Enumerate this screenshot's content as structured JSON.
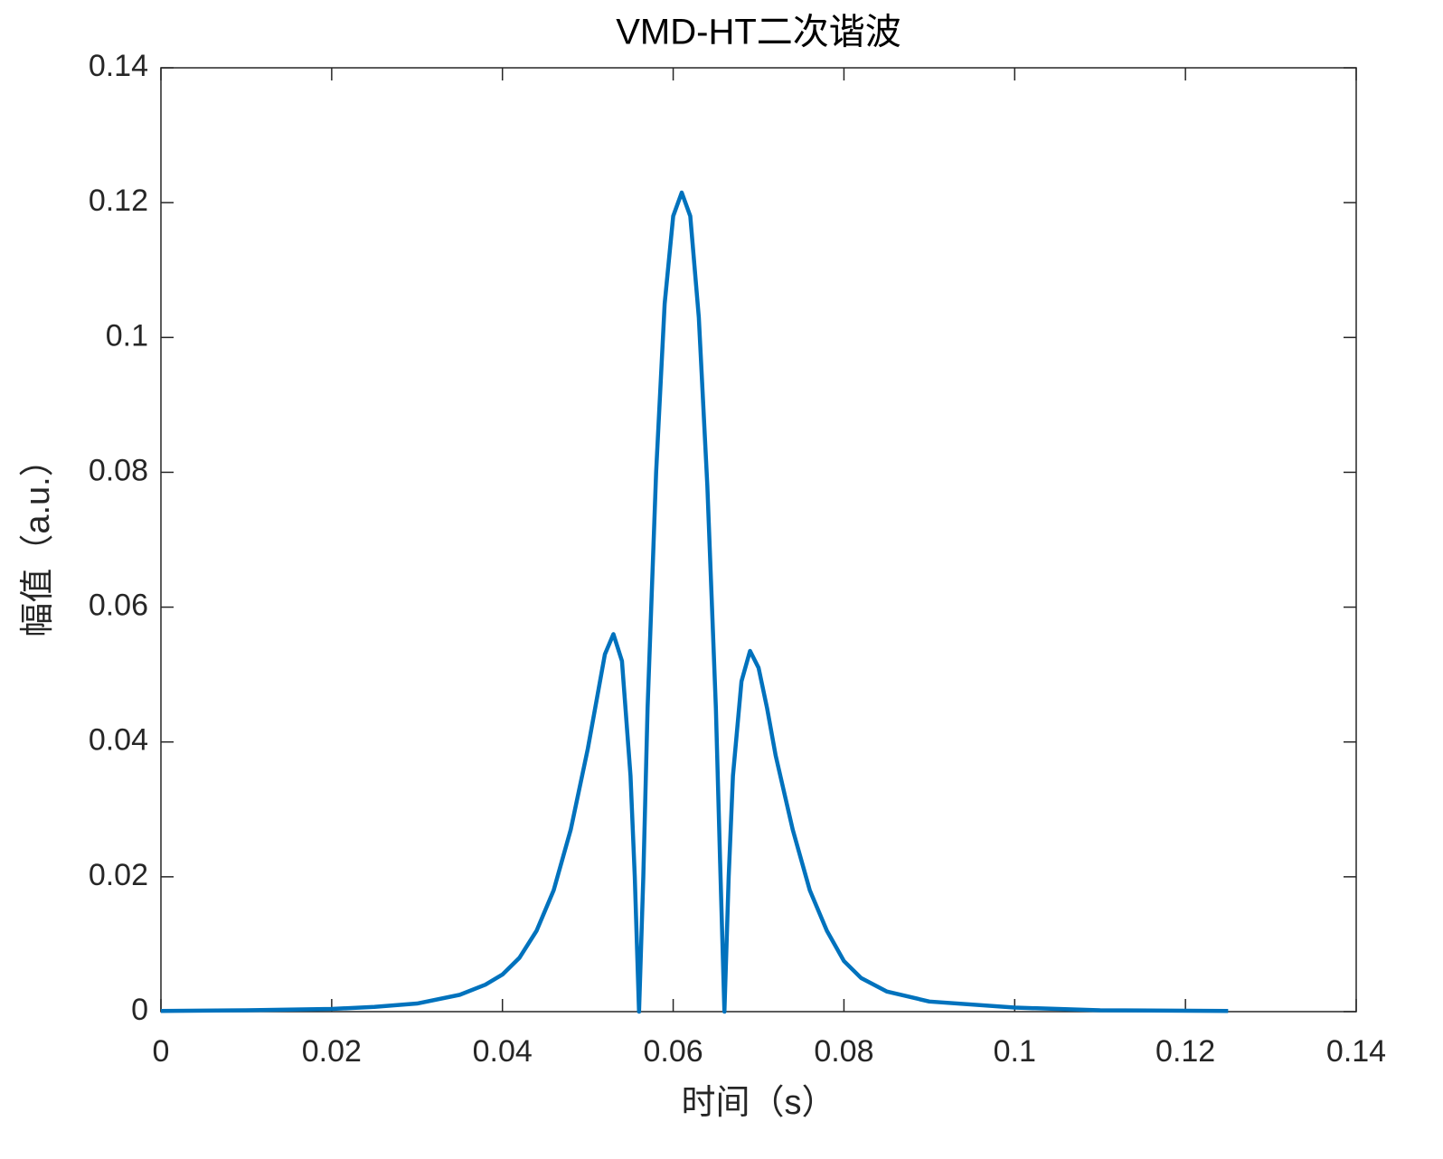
{
  "chart_data": {
    "type": "line",
    "title": "VMD-HT二次谐波",
    "x_label": "时间（s）",
    "y_label": "幅值（a.u.）",
    "x": [
      0,
      0.01,
      0.02,
      0.025,
      0.03,
      0.035,
      0.038,
      0.04,
      0.042,
      0.044,
      0.046,
      0.048,
      0.05,
      0.051,
      0.052,
      0.053,
      0.054,
      0.055,
      0.0555,
      0.056,
      0.0565,
      0.057,
      0.058,
      0.059,
      0.06,
      0.061,
      0.062,
      0.063,
      0.064,
      0.065,
      0.0655,
      0.066,
      0.0665,
      0.067,
      0.068,
      0.069,
      0.07,
      0.071,
      0.072,
      0.074,
      0.076,
      0.078,
      0.08,
      0.082,
      0.085,
      0.09,
      0.1,
      0.11,
      0.125
    ],
    "values": [
      0.0001,
      0.0002,
      0.0004,
      0.0007,
      0.0012,
      0.0025,
      0.004,
      0.0055,
      0.008,
      0.012,
      0.018,
      0.027,
      0.039,
      0.046,
      0.053,
      0.056,
      0.052,
      0.035,
      0.02,
      0,
      0.02,
      0.045,
      0.08,
      0.105,
      0.118,
      0.1215,
      0.118,
      0.103,
      0.078,
      0.045,
      0.022,
      0,
      0.02,
      0.035,
      0.049,
      0.0535,
      0.051,
      0.045,
      0.038,
      0.027,
      0.018,
      0.012,
      0.0075,
      0.005,
      0.003,
      0.0015,
      0.0006,
      0.0002,
      0.0001
    ],
    "color": "#0072BD",
    "xlim": [
      0,
      0.14
    ],
    "xticks": [
      0,
      0.02,
      0.04,
      0.06,
      0.08,
      0.1,
      0.12,
      0.14
    ],
    "ylim": [
      0,
      0.14
    ],
    "yticks": [
      0,
      0.02,
      0.04,
      0.06,
      0.08,
      0.1,
      0.12,
      0.14
    ],
    "grid": false
  }
}
